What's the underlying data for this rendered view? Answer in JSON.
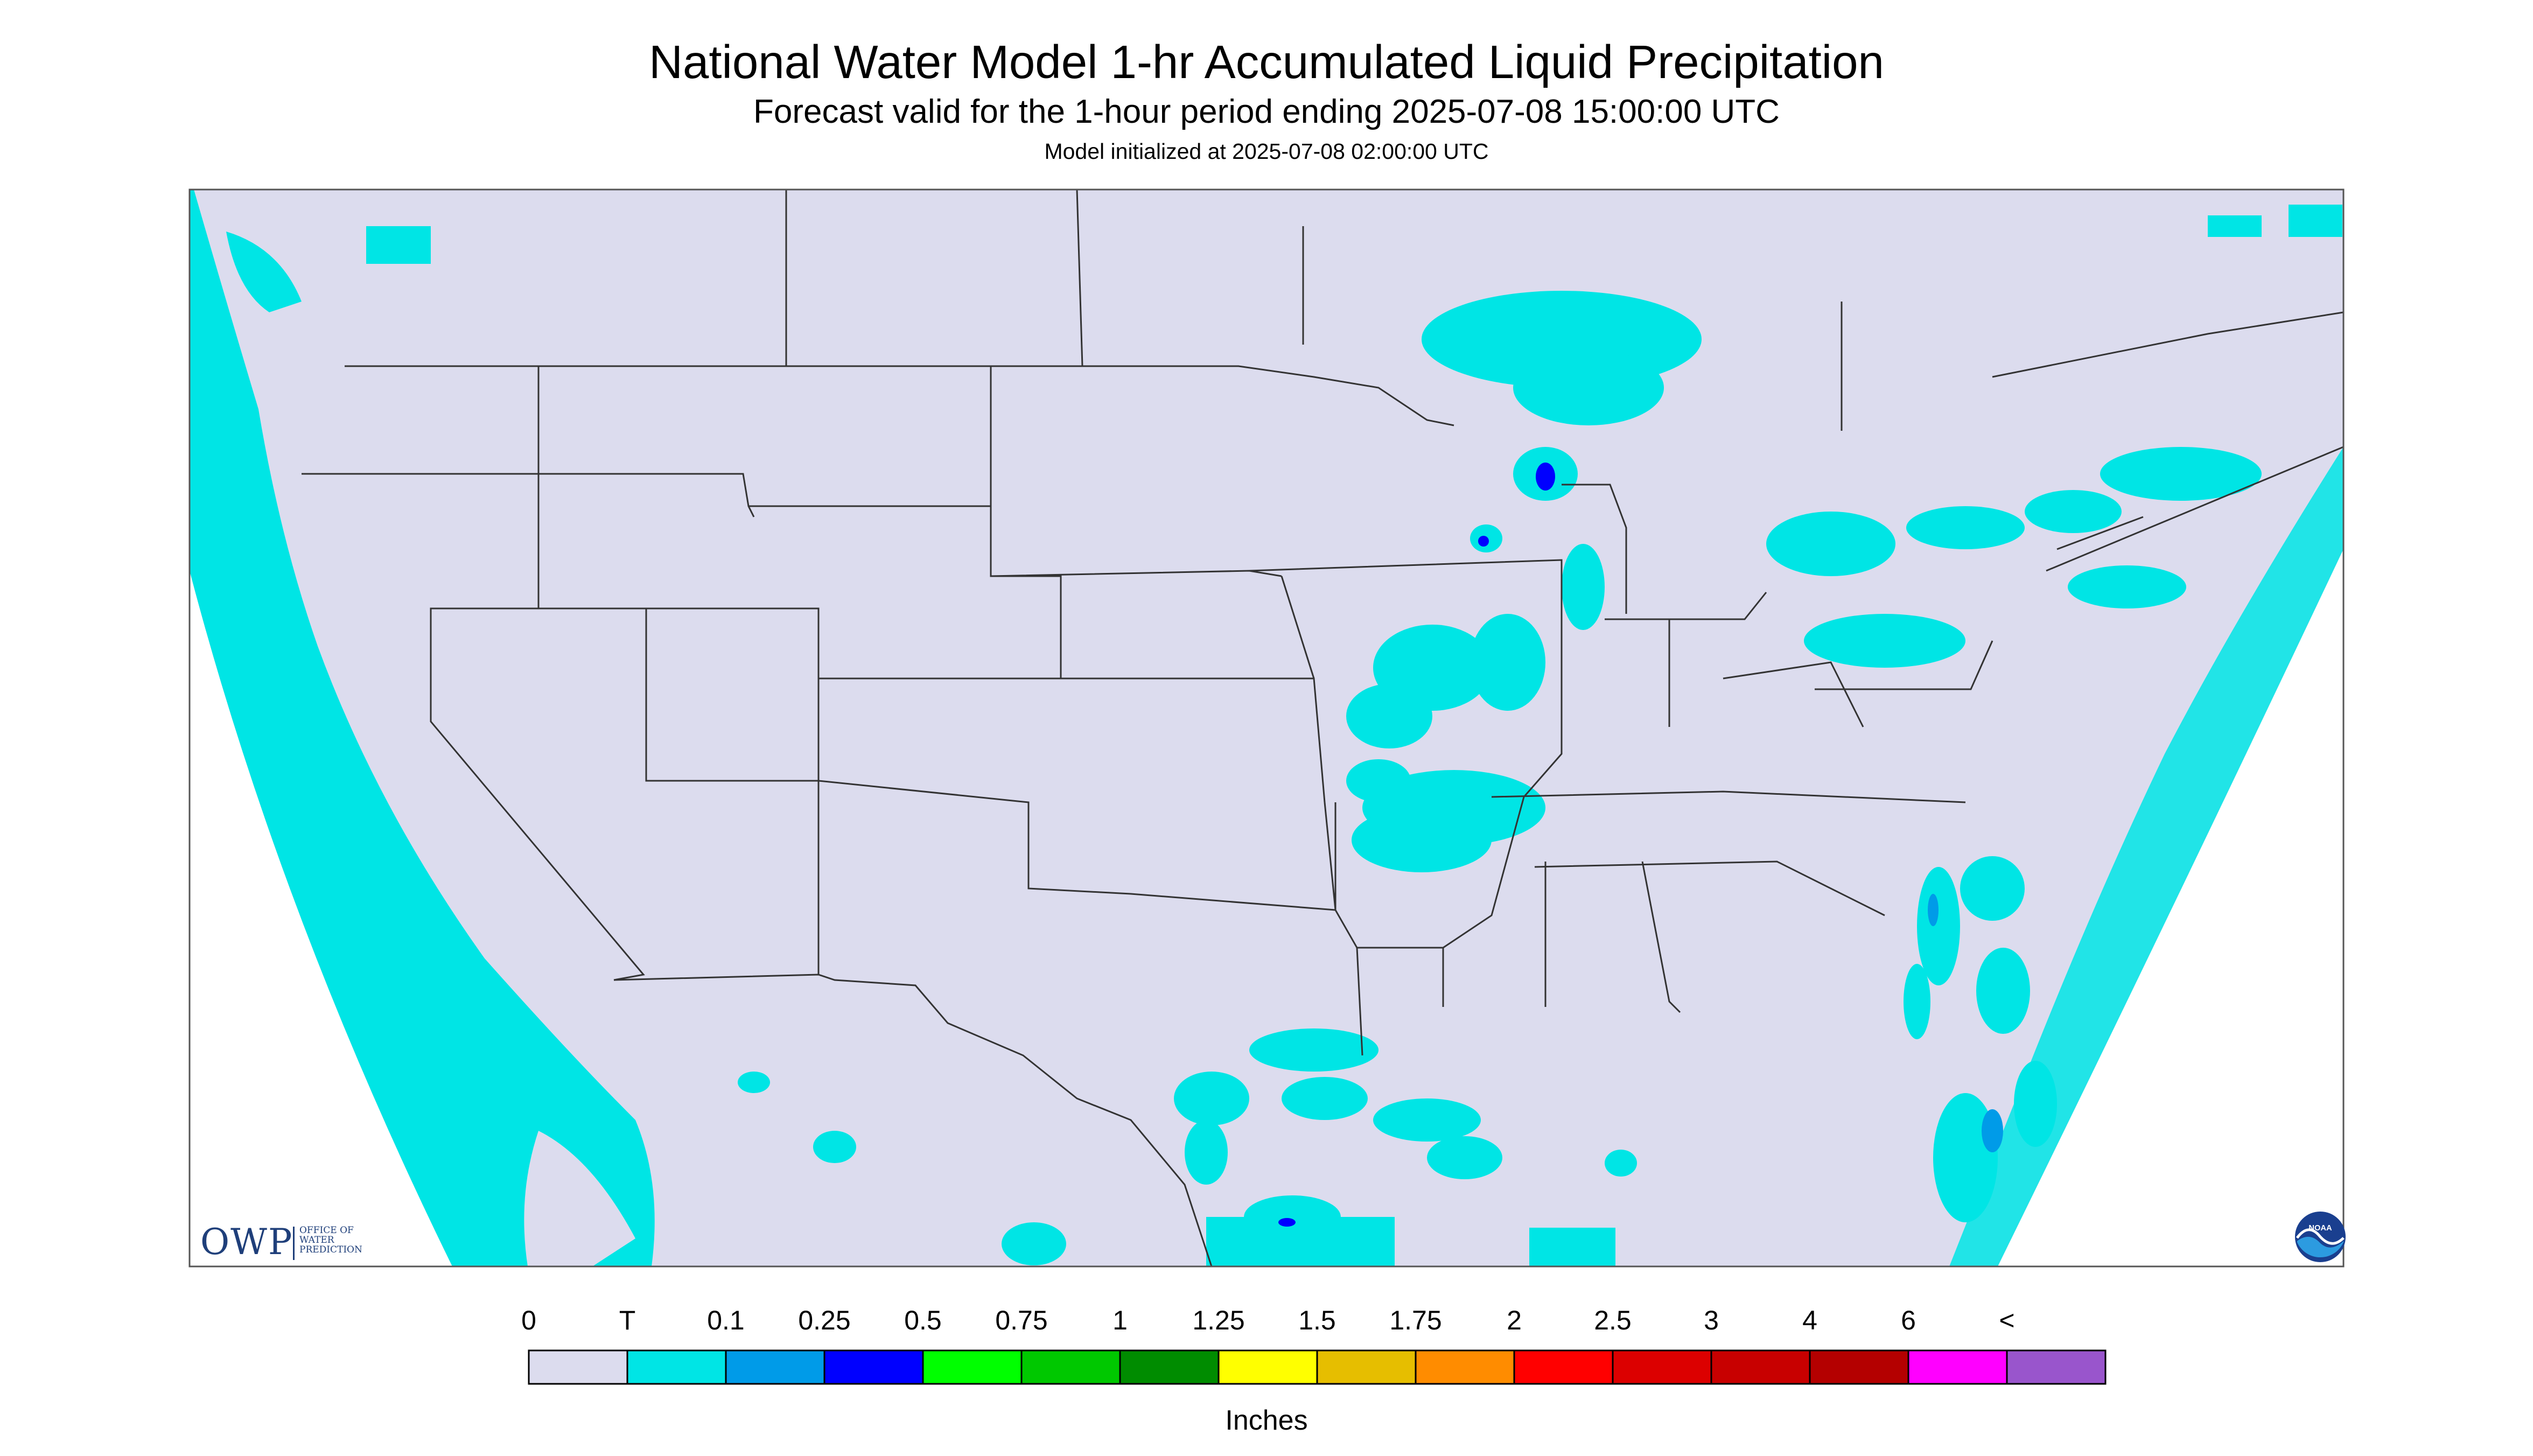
{
  "header": {
    "title": "National Water Model 1-hr Accumulated Liquid Precipitation",
    "subtitle": "Forecast valid for the 1-hour period ending 2025-07-08 15:00:00 UTC",
    "init": "Model initialized at 2025-07-08 02:00:00 UTC"
  },
  "logos": {
    "owp_big": "OWP",
    "owp_line1": "OFFICE OF",
    "owp_line2": "WATER",
    "owp_line3": "PREDICTION",
    "noaa": "NOAA"
  },
  "colors": {
    "land": "#dcdcee",
    "trace": "#00e5e5",
    "p01": "#009be8",
    "p025": "#0000ff",
    "border": "#333333"
  },
  "legend": {
    "labels": [
      "0",
      "T",
      "0.1",
      "0.25",
      "0.5",
      "0.75",
      "1",
      "1.25",
      "1.5",
      "1.75",
      "2",
      "2.5",
      "3",
      "4",
      "6",
      "<"
    ],
    "colors": [
      "#dcdcee",
      "#00e5e5",
      "#009be8",
      "#0000ff",
      "#00ff00",
      "#00c800",
      "#008c00",
      "#ffff00",
      "#e6be00",
      "#ff8c00",
      "#ff0000",
      "#dc0000",
      "#c80000",
      "#b40000",
      "#ff00ff",
      "#9955cc"
    ],
    "units": "Inches"
  }
}
